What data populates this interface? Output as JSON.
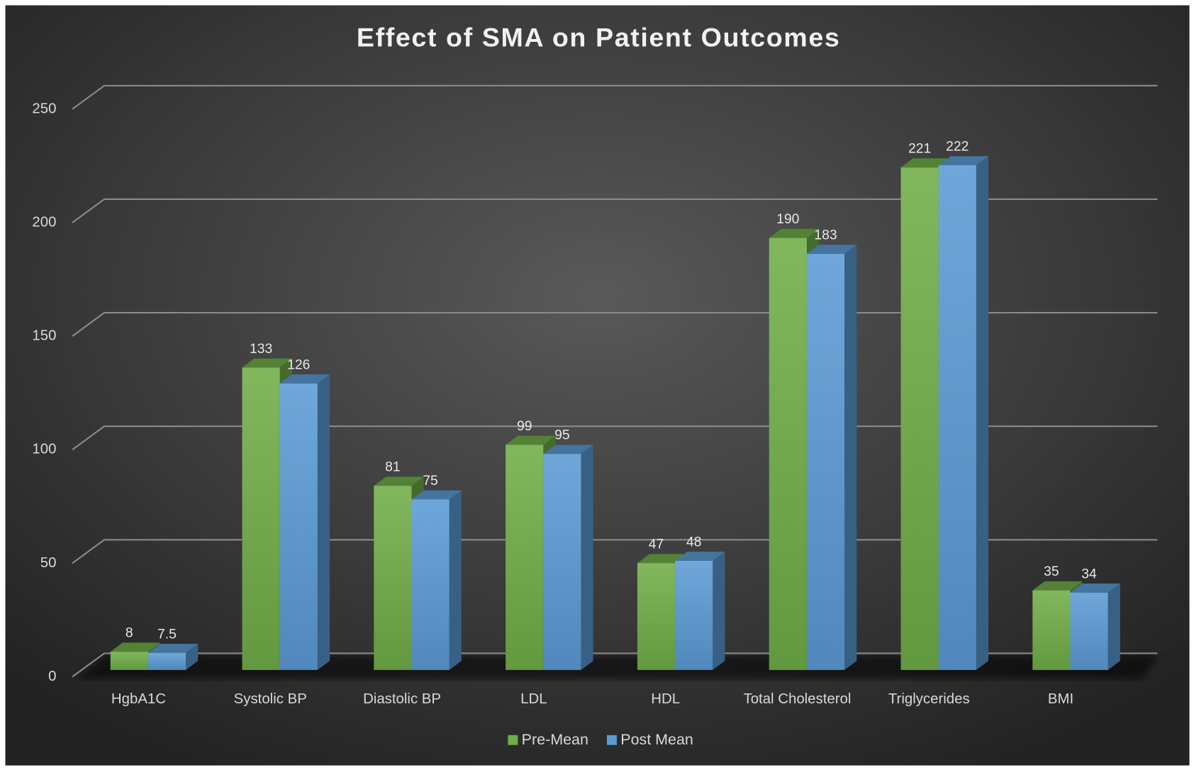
{
  "chart_data": {
    "type": "bar3d",
    "title": "Effect of SMA on Patient Outcomes",
    "categories": [
      "HgbA1C",
      "Systolic BP",
      "Diastolic BP",
      "LDL",
      "HDL",
      "Total Cholesterol",
      "Triglycerides",
      "BMI"
    ],
    "series": [
      {
        "name": "Pre-Mean",
        "color": "#70ad47",
        "values": [
          8,
          133,
          81,
          99,
          47,
          190,
          221,
          35
        ]
      },
      {
        "name": "Post Mean",
        "color": "#5b9bd5",
        "values": [
          7.5,
          126,
          75,
          95,
          48,
          183,
          222,
          34
        ]
      }
    ],
    "ylim": [
      0,
      250
    ],
    "yticks": [
      0,
      50,
      100,
      150,
      200,
      250
    ],
    "grid": true,
    "legend": "bottom"
  }
}
